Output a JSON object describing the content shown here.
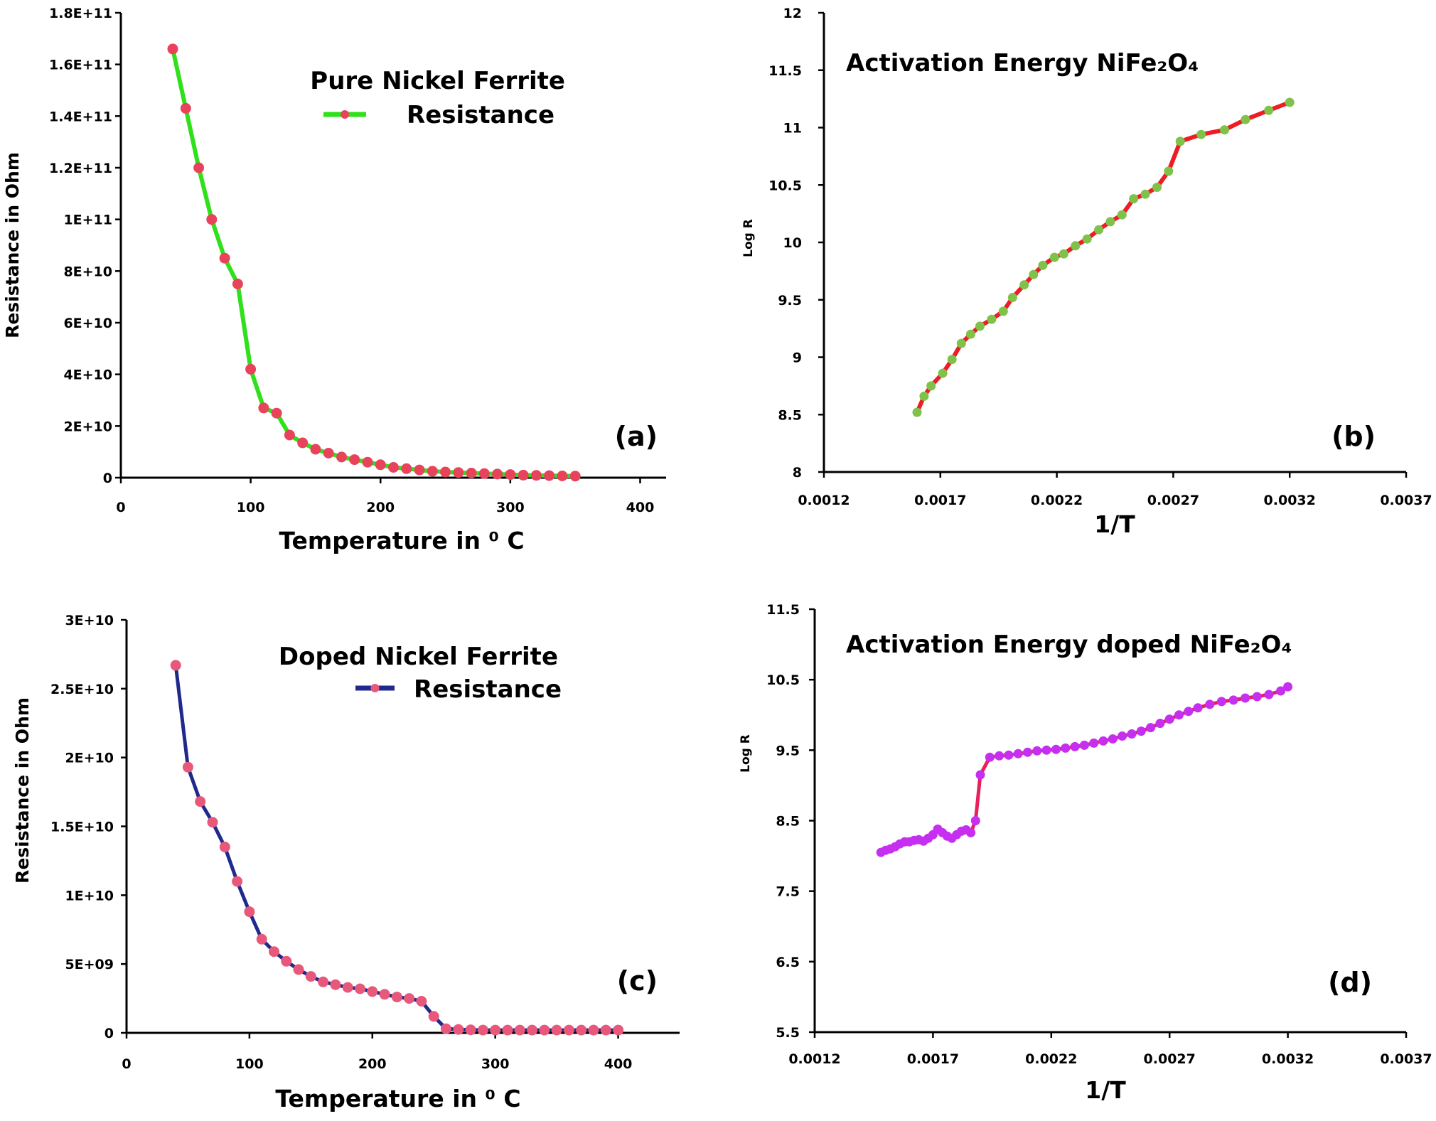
{
  "chart_data": [
    {
      "id": "a",
      "type": "line",
      "panel_label": "(a)",
      "title": "Pure Nickel Ferrite",
      "legend": "Resistance",
      "legend_position": "top-right",
      "xlabel": "Temperature in ⁰ C",
      "ylabel": "Resistance in Ohm",
      "xlim": [
        0,
        420
      ],
      "ylim": [
        0,
        180000000000
      ],
      "xticks": [
        0,
        100,
        200,
        300,
        400
      ],
      "xtick_labels": [
        "0",
        "100",
        "200",
        "300",
        "400"
      ],
      "yticks": [
        0,
        20000000000,
        40000000000,
        60000000000,
        80000000000,
        100000000000,
        120000000000,
        140000000000,
        160000000000,
        180000000000
      ],
      "ytick_labels": [
        "0",
        "2E+10",
        "4E+10",
        "6E+10",
        "8E+10",
        "1E+11",
        "1.2E+11",
        "1.4E+11",
        "1.6E+11",
        "1.8E+11"
      ],
      "line_color": "#2fe01a",
      "marker_color": "#e8435a",
      "x": [
        40,
        50,
        60,
        70,
        80,
        90,
        100,
        110,
        120,
        130,
        140,
        150,
        160,
        170,
        180,
        190,
        200,
        210,
        220,
        230,
        240,
        250,
        260,
        270,
        280,
        290,
        300,
        310,
        320,
        330,
        340,
        350
      ],
      "y": [
        166000000000,
        143000000000,
        120000000000,
        100000000000,
        85000000000,
        75000000000,
        42000000000,
        27000000000,
        25000000000,
        16500000000,
        13500000000,
        11000000000,
        9500000000,
        8000000000,
        7000000000,
        6000000000,
        5000000000,
        4000000000,
        3500000000,
        3000000000,
        2500000000,
        2200000000,
        2000000000,
        1800000000,
        1600000000,
        1400000000,
        1200000000,
        1000000000,
        900000000,
        800000000,
        700000000,
        600000000
      ]
    },
    {
      "id": "b",
      "type": "line",
      "panel_label": "(b)",
      "title": "Activation Energy  NiFe₂O₄",
      "xlabel": "1/T",
      "ylabel": "Log R",
      "xlim": [
        0.0012,
        0.0037
      ],
      "ylim": [
        8,
        12
      ],
      "xticks": [
        0.0012,
        0.0017,
        0.0022,
        0.0027,
        0.0032,
        0.0037
      ],
      "xtick_labels": [
        "0.0012",
        "0.0017",
        "0.0022",
        "0.0027",
        "0.0032",
        "0.0037"
      ],
      "yticks": [
        8,
        8.5,
        9,
        9.5,
        10,
        10.5,
        11,
        11.5,
        12
      ],
      "ytick_labels": [
        "8",
        "8.5",
        "9",
        "9.5",
        "10",
        "10.5",
        "11",
        "11.5",
        "12"
      ],
      "line_color": "#ee1c25",
      "marker_color": "#7fc24a",
      "x": [
        0.0016,
        0.00163,
        0.00166,
        0.00171,
        0.00175,
        0.00179,
        0.00183,
        0.00187,
        0.00192,
        0.00197,
        0.00201,
        0.00206,
        0.0021,
        0.00214,
        0.00219,
        0.00223,
        0.00228,
        0.00233,
        0.00238,
        0.00243,
        0.00248,
        0.00253,
        0.00258,
        0.00263,
        0.00268,
        0.00273,
        0.00282,
        0.00292,
        0.00301,
        0.00311,
        0.0032
      ],
      "y": [
        8.52,
        8.66,
        8.75,
        8.86,
        8.98,
        9.12,
        9.2,
        9.27,
        9.33,
        9.4,
        9.52,
        9.63,
        9.72,
        9.8,
        9.87,
        9.9,
        9.97,
        10.03,
        10.11,
        10.18,
        10.24,
        10.38,
        10.42,
        10.48,
        10.62,
        10.88,
        10.94,
        10.98,
        11.07,
        11.15,
        11.22
      ]
    },
    {
      "id": "c",
      "type": "line",
      "panel_label": "(c)",
      "title": "Doped Nickel Ferrite",
      "legend": "Resistance",
      "legend_position": "top-right",
      "xlabel": "Temperature in ⁰ C",
      "ylabel": "Resistance in Ohm",
      "xlim": [
        0,
        450
      ],
      "ylim": [
        0,
        30000000000
      ],
      "xticks": [
        0,
        100,
        200,
        300,
        400
      ],
      "xtick_labels": [
        "0",
        "100",
        "200",
        "300",
        "400"
      ],
      "yticks": [
        0,
        5000000000,
        10000000000,
        15000000000,
        20000000000,
        25000000000,
        30000000000
      ],
      "ytick_labels": [
        "0",
        "5E+09",
        "1E+10",
        "1.5E+10",
        "2E+10",
        "2.5E+10",
        "3E+10"
      ],
      "line_color": "#1f2a8c",
      "marker_color": "#e8587a",
      "x": [
        40,
        50,
        60,
        70,
        80,
        90,
        100,
        110,
        120,
        130,
        140,
        150,
        160,
        170,
        180,
        190,
        200,
        210,
        220,
        230,
        240,
        250,
        260,
        270,
        280,
        290,
        300,
        310,
        320,
        330,
        340,
        350,
        360,
        370,
        380,
        390,
        400
      ],
      "y": [
        26700000000,
        19300000000,
        16800000000,
        15300000000,
        13500000000,
        11000000000,
        8800000000,
        6800000000,
        5900000000,
        5200000000,
        4600000000,
        4100000000,
        3700000000,
        3500000000,
        3300000000,
        3200000000,
        3000000000,
        2800000000,
        2600000000,
        2500000000,
        2300000000,
        1200000000,
        300000000,
        250000000,
        220000000,
        200000000,
        200000000,
        200000000,
        200000000,
        200000000,
        200000000,
        200000000,
        200000000,
        200000000,
        200000000,
        200000000,
        200000000
      ]
    },
    {
      "id": "d",
      "type": "line",
      "panel_label": "(d)",
      "title": "Activation Energy doped  NiFe₂O₄",
      "xlabel": "1/T",
      "ylabel": "Log R",
      "xlim": [
        0.0012,
        0.0037
      ],
      "ylim": [
        5.5,
        11.5
      ],
      "xticks": [
        0.0012,
        0.0017,
        0.0022,
        0.0027,
        0.0032,
        0.0037
      ],
      "xtick_labels": [
        "0.0012",
        "0.0017",
        "0.0022",
        "0.0027",
        "0.0032",
        "0.0037"
      ],
      "yticks": [
        5.5,
        6.5,
        7.5,
        8.5,
        9.5,
        10.5,
        11.5
      ],
      "ytick_labels": [
        "5.5",
        "6.5",
        "7.5",
        "8.5",
        "9.5",
        "10.5",
        "11.5"
      ],
      "line_color": "#e8205a",
      "marker_color": "#c62ff0",
      "x": [
        0.00148,
        0.0015,
        0.00152,
        0.00154,
        0.00156,
        0.00158,
        0.0016,
        0.00162,
        0.00164,
        0.00166,
        0.00168,
        0.0017,
        0.00172,
        0.00174,
        0.00176,
        0.00178,
        0.0018,
        0.00182,
        0.00184,
        0.00186,
        0.00188,
        0.0019,
        0.00194,
        0.00198,
        0.00202,
        0.00206,
        0.0021,
        0.00214,
        0.00218,
        0.00222,
        0.00226,
        0.0023,
        0.00234,
        0.00238,
        0.00242,
        0.00246,
        0.0025,
        0.00254,
        0.00258,
        0.00262,
        0.00266,
        0.0027,
        0.00274,
        0.00278,
        0.00282,
        0.00287,
        0.00292,
        0.00297,
        0.00302,
        0.00307,
        0.00312,
        0.00317,
        0.0032
      ],
      "y": [
        8.05,
        8.08,
        8.1,
        8.13,
        8.17,
        8.2,
        8.2,
        8.22,
        8.23,
        8.21,
        8.25,
        8.3,
        8.38,
        8.33,
        8.28,
        8.25,
        8.3,
        8.35,
        8.37,
        8.33,
        8.5,
        9.15,
        9.4,
        9.42,
        9.43,
        9.45,
        9.47,
        9.49,
        9.5,
        9.51,
        9.53,
        9.55,
        9.57,
        9.6,
        9.63,
        9.66,
        9.7,
        9.73,
        9.77,
        9.82,
        9.88,
        9.94,
        10.0,
        10.05,
        10.1,
        10.15,
        10.19,
        10.21,
        10.24,
        10.26,
        10.29,
        10.34,
        10.4
      ]
    }
  ]
}
